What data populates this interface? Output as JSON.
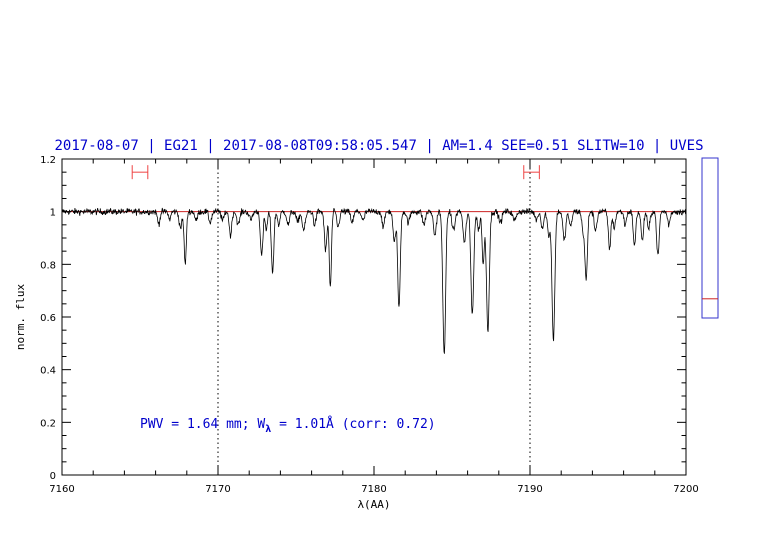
{
  "chart_data": {
    "type": "line",
    "title": "2017-08-07 | EG21 | 2017-08-08T09:58:05.547 | AM=1.4  SEE=0.51  SLITW=10 | UVES",
    "xlabel": "λ(AA)",
    "ylabel": "norm. flux",
    "xlim": [
      7160,
      7200
    ],
    "ylim": [
      0,
      1.2
    ],
    "x_ticks": [
      "7160",
      "7170",
      "7180",
      "7190",
      "7200"
    ],
    "y_ticks": [
      "0",
      "0.2",
      "0.4",
      "0.6",
      "0.8",
      "1",
      "1.2"
    ],
    "continuum_level": 1.0,
    "reference_lines": [
      7170,
      7190
    ],
    "window_markers": [
      {
        "x1": 7164.5,
        "x2": 7165.5,
        "y": 1.15
      },
      {
        "x1": 7189.6,
        "x2": 7190.6,
        "y": 1.15
      }
    ],
    "annotation": {
      "text_prefix": "PWV = 1.64 mm; W",
      "subscript": "λ",
      "text_suffix": " = 1.01Å (corr: 0.72)"
    },
    "side_gauge": {
      "ymin": 0,
      "ymax": 1,
      "value": 0.12
    },
    "colors": {
      "spectrum": "#000000",
      "continuum": "#cc2222",
      "title": "#0000cc",
      "annotation": "#0000cc",
      "window_marker": "#ee4444",
      "gauge_frame": "#3333cc",
      "gauge_level": "#cc2222"
    },
    "absorption_lines": [
      [
        7166.2,
        0.045,
        0.08
      ],
      [
        7166.9,
        0.03,
        0.07
      ],
      [
        7167.6,
        0.06,
        0.09
      ],
      [
        7167.9,
        0.2,
        0.07
      ],
      [
        7168.6,
        0.035,
        0.08
      ],
      [
        7169.5,
        0.04,
        0.09
      ],
      [
        7170.3,
        0.035,
        0.08
      ],
      [
        7170.8,
        0.09,
        0.08
      ],
      [
        7171.3,
        0.05,
        0.09
      ],
      [
        7172.1,
        0.03,
        0.1
      ],
      [
        7172.8,
        0.17,
        0.08
      ],
      [
        7173.1,
        0.07,
        0.07
      ],
      [
        7173.5,
        0.23,
        0.08
      ],
      [
        7173.9,
        0.05,
        0.08
      ],
      [
        7174.5,
        0.05,
        0.09
      ],
      [
        7175.1,
        0.04,
        0.09
      ],
      [
        7175.5,
        0.07,
        0.1
      ],
      [
        7176.2,
        0.05,
        0.08
      ],
      [
        7176.9,
        0.15,
        0.08
      ],
      [
        7177.2,
        0.29,
        0.07
      ],
      [
        7177.7,
        0.06,
        0.08
      ],
      [
        7178.6,
        0.04,
        0.09
      ],
      [
        7179.3,
        0.035,
        0.09
      ],
      [
        7180.6,
        0.06,
        0.08
      ],
      [
        7181.3,
        0.12,
        0.08
      ],
      [
        7181.6,
        0.37,
        0.08
      ],
      [
        7182.2,
        0.04,
        0.1
      ],
      [
        7183.2,
        0.05,
        0.09
      ],
      [
        7183.9,
        0.09,
        0.09
      ],
      [
        7184.5,
        0.54,
        0.09
      ],
      [
        7185.1,
        0.07,
        0.1
      ],
      [
        7185.8,
        0.12,
        0.09
      ],
      [
        7186.3,
        0.39,
        0.09
      ],
      [
        7186.7,
        0.07,
        0.08
      ],
      [
        7187.0,
        0.2,
        0.07
      ],
      [
        7187.3,
        0.45,
        0.09
      ],
      [
        7188.1,
        0.04,
        0.1
      ],
      [
        7189.0,
        0.035,
        0.1
      ],
      [
        7190.4,
        0.03,
        0.09
      ],
      [
        7190.8,
        0.06,
        0.09
      ],
      [
        7191.2,
        0.09,
        0.08
      ],
      [
        7191.5,
        0.49,
        0.09
      ],
      [
        7192.2,
        0.11,
        0.09
      ],
      [
        7192.6,
        0.06,
        0.08
      ],
      [
        7193.4,
        0.07,
        0.08
      ],
      [
        7193.6,
        0.26,
        0.08
      ],
      [
        7194.2,
        0.07,
        0.09
      ],
      [
        7195.1,
        0.14,
        0.08
      ],
      [
        7195.4,
        0.06,
        0.08
      ],
      [
        7196.1,
        0.05,
        0.08
      ],
      [
        7196.7,
        0.13,
        0.08
      ],
      [
        7197.2,
        0.11,
        0.08
      ],
      [
        7197.6,
        0.07,
        0.08
      ],
      [
        7198.2,
        0.17,
        0.08
      ],
      [
        7198.9,
        0.05,
        0.08
      ]
    ],
    "noise_rms": 0.012
  }
}
